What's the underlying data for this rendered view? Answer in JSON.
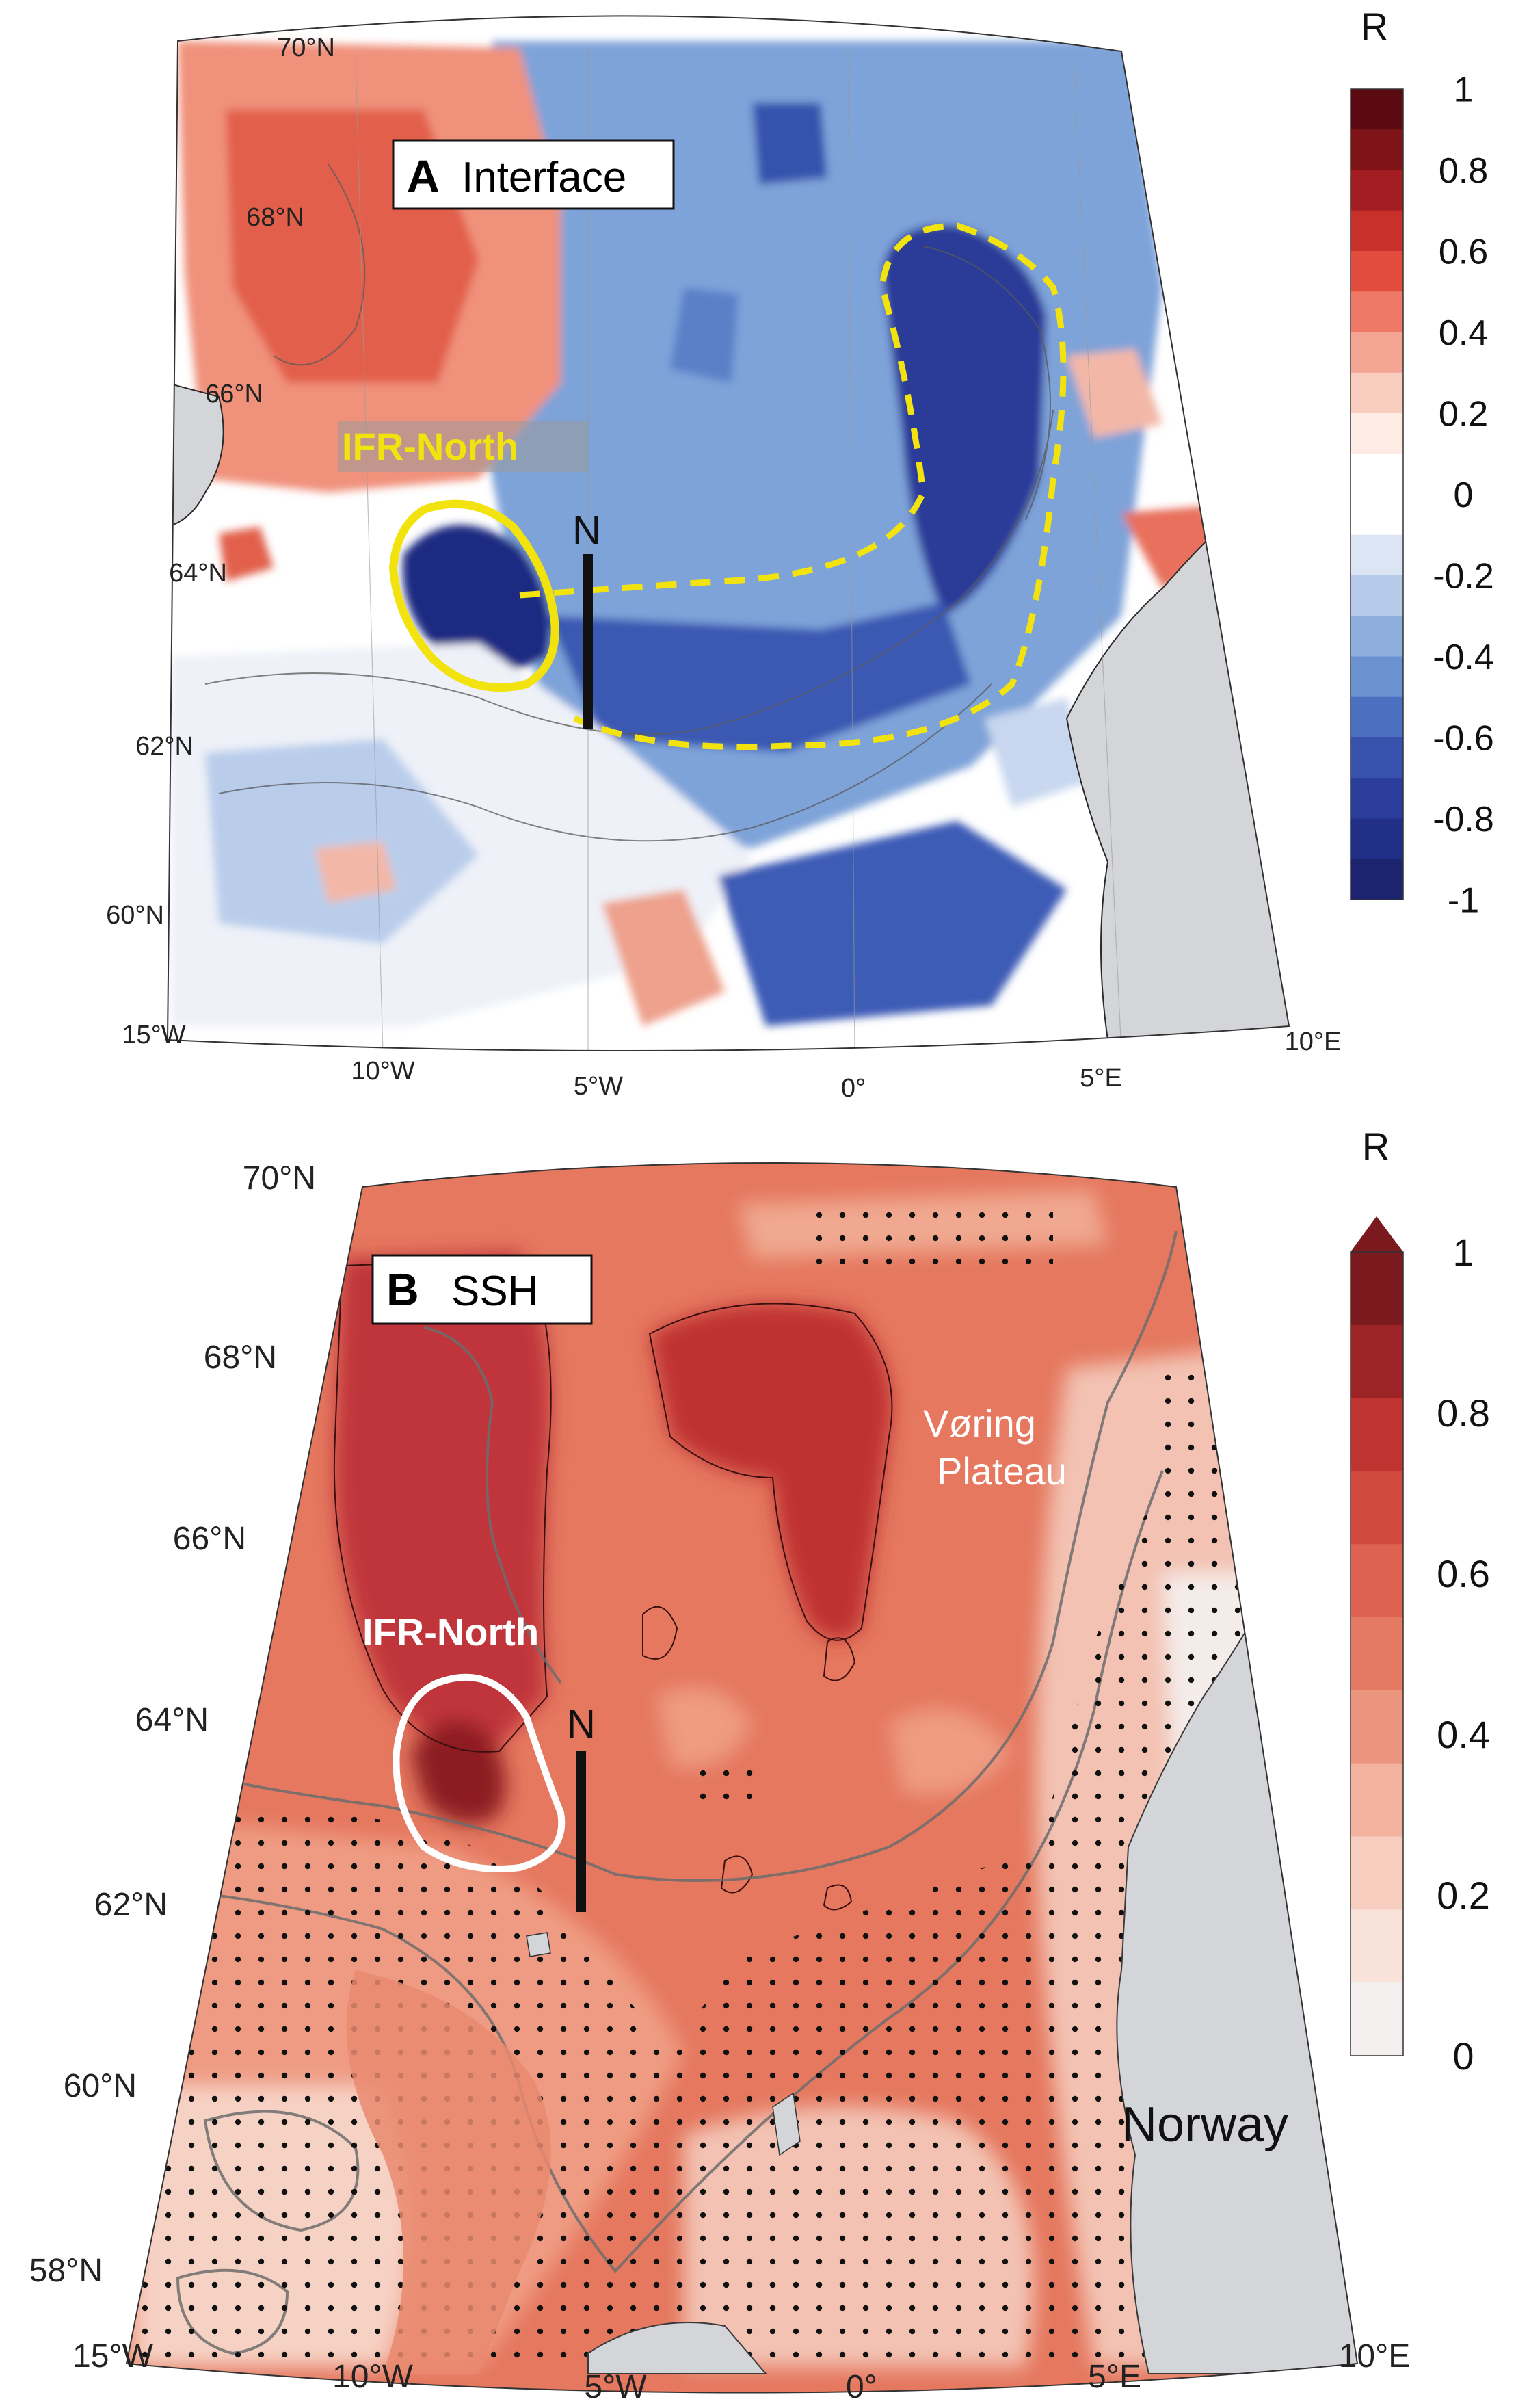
{
  "figure": {
    "panels": [
      {
        "id": "A",
        "label_letter": "A",
        "label_text": "Interface",
        "region_label": "IFR-North",
        "section_label": "N",
        "colorbar": {
          "title": "R",
          "ticks": [
            "1",
            "0.8",
            "0.6",
            "0.4",
            "0.2",
            "0",
            "-0.2",
            "-0.4",
            "-0.6",
            "-0.8",
            "-1"
          ],
          "colors": [
            "#5a0a10",
            "#7e1418",
            "#a31e22",
            "#c8302c",
            "#e24c3c",
            "#ee7966",
            "#f4a593",
            "#f8cdbf",
            "#fdebe4",
            "#ffffff",
            "#ffffff",
            "#dbe5f4",
            "#b6cbea",
            "#8eaede",
            "#6a91d0",
            "#4a70bf",
            "#3652ad",
            "#2a3d9b",
            "#222f86",
            "#1c2470"
          ]
        },
        "lat_labels": [
          "70°N",
          "68°N",
          "66°N",
          "64°N",
          "62°N",
          "60°N"
        ],
        "lon_labels": [
          "15°W",
          "10°W",
          "5°W",
          "0°",
          "5°E",
          "10°E"
        ]
      },
      {
        "id": "B",
        "label_letter": "B",
        "label_text": "SSH",
        "region_label": "IFR-North",
        "section_label": "N",
        "place_labels": {
          "voring_1": "Vøring",
          "voring_2": "Plateau",
          "norway": "Norway"
        },
        "colorbar": {
          "title": "R",
          "ticks": [
            "1",
            "0.8",
            "0.6",
            "0.4",
            "0.2",
            "0"
          ],
          "colors": [
            "#7a1a1e",
            "#9c2427",
            "#bf3331",
            "#d24a3e",
            "#de6250",
            "#e57a63",
            "#ec957e",
            "#f2b29e",
            "#f6cdbf",
            "#f9e2d9",
            "#f2efee"
          ]
        },
        "lat_labels": [
          "70°N",
          "68°N",
          "66°N",
          "64°N",
          "62°N",
          "60°N",
          "58°N"
        ],
        "lon_labels": [
          "15°W",
          "10°W",
          "5°W",
          "0°",
          "5°E",
          "10°E"
        ]
      }
    ],
    "colors": {
      "land": "#d3d5d8",
      "ifr_outline_a": "#f2e30f",
      "ifr_outline_b": "#ffffff",
      "section_line": "#111111",
      "contour": "#5a5a5a"
    }
  }
}
